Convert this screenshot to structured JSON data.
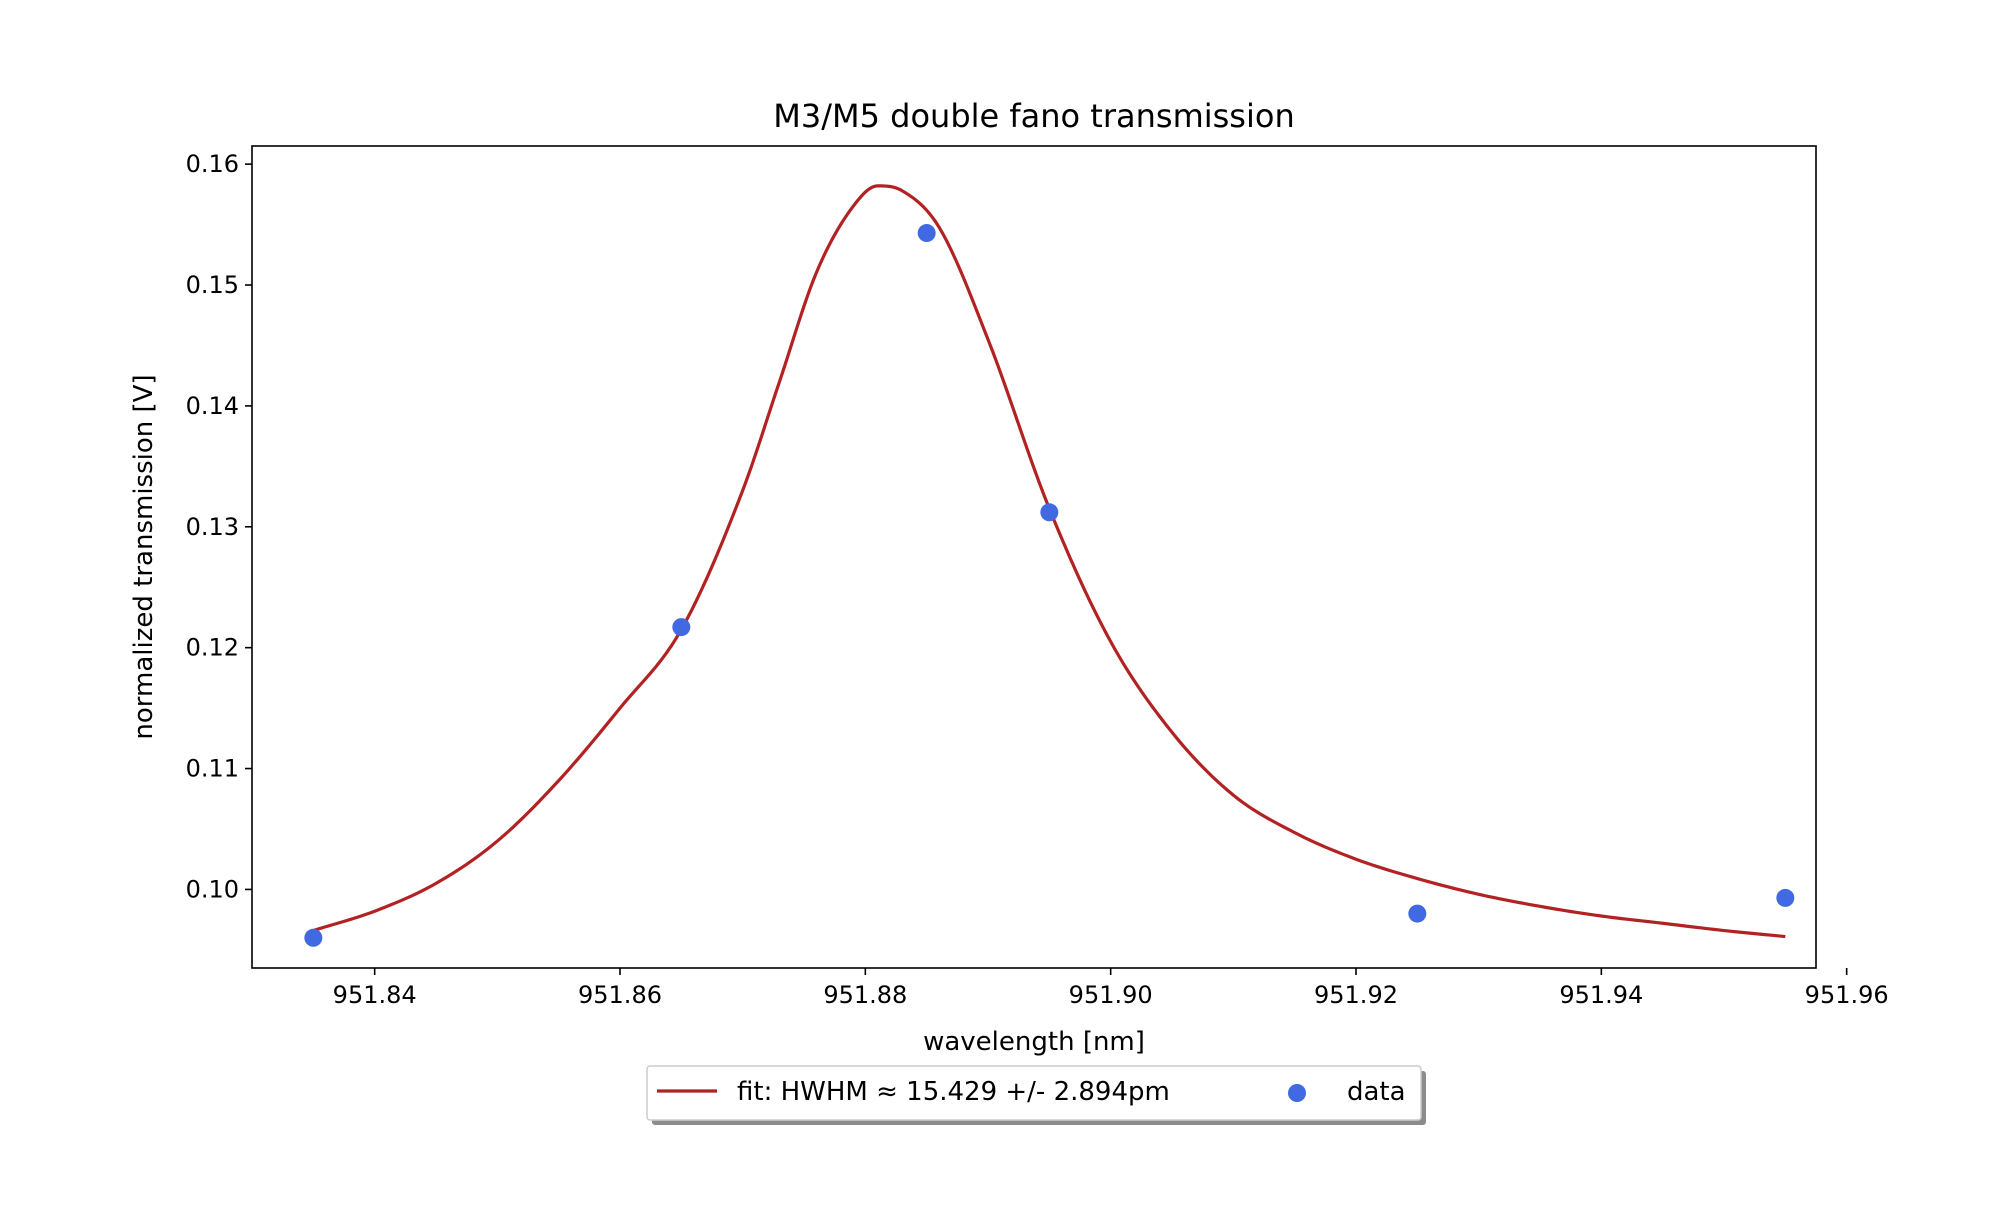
{
  "chart_data": {
    "type": "line",
    "title": "M3/M5 double fano transmission",
    "xlabel": "wavelength [nm]",
    "ylabel": "normalized transmission [V]",
    "xlim": [
      951.83,
      951.9575
    ],
    "ylim": [
      0.0935,
      0.1615
    ],
    "xticks": [
      951.84,
      951.86,
      951.88,
      951.9,
      951.92,
      951.94,
      951.96
    ],
    "xtick_labels": [
      "951.84",
      "951.86",
      "951.88",
      "951.90",
      "951.92",
      "951.94",
      "951.96"
    ],
    "yticks": [
      0.1,
      0.11,
      0.12,
      0.13,
      0.14,
      0.15,
      0.16
    ],
    "ytick_labels": [
      "0.10",
      "0.11",
      "0.12",
      "0.13",
      "0.14",
      "0.15",
      "0.16"
    ],
    "grid": false,
    "legend_position": "below the plot, centered, 2 columns, shadowed frame",
    "series": [
      {
        "name": "fit: HWHM ≈ 15.429 +/- 2.894pm",
        "kind": "line",
        "color": "#b22222",
        "x": [
          951.835,
          951.84,
          951.845,
          951.85,
          951.855,
          951.86,
          951.865,
          951.87,
          951.873,
          951.876,
          951.879,
          951.881,
          951.883,
          951.886,
          951.89,
          951.895,
          951.9,
          951.905,
          951.91,
          951.915,
          951.92,
          951.925,
          951.93,
          951.935,
          951.94,
          951.945,
          951.95,
          951.955
        ],
        "y": [
          0.0966,
          0.0982,
          0.1005,
          0.104,
          0.109,
          0.115,
          0.1215,
          0.133,
          0.142,
          0.151,
          0.1565,
          0.1582,
          0.1578,
          0.1548,
          0.1455,
          0.1315,
          0.1205,
          0.113,
          0.1078,
          0.1047,
          0.1025,
          0.1009,
          0.0996,
          0.0986,
          0.0978,
          0.0972,
          0.0966,
          0.0961
        ]
      },
      {
        "name": "data",
        "kind": "scatter",
        "color": "#4169e1",
        "x": [
          951.835,
          951.865,
          951.885,
          951.895,
          951.925,
          951.955
        ],
        "y": [
          0.096,
          0.1217,
          0.1543,
          0.1312,
          0.098,
          0.0993
        ]
      }
    ]
  }
}
